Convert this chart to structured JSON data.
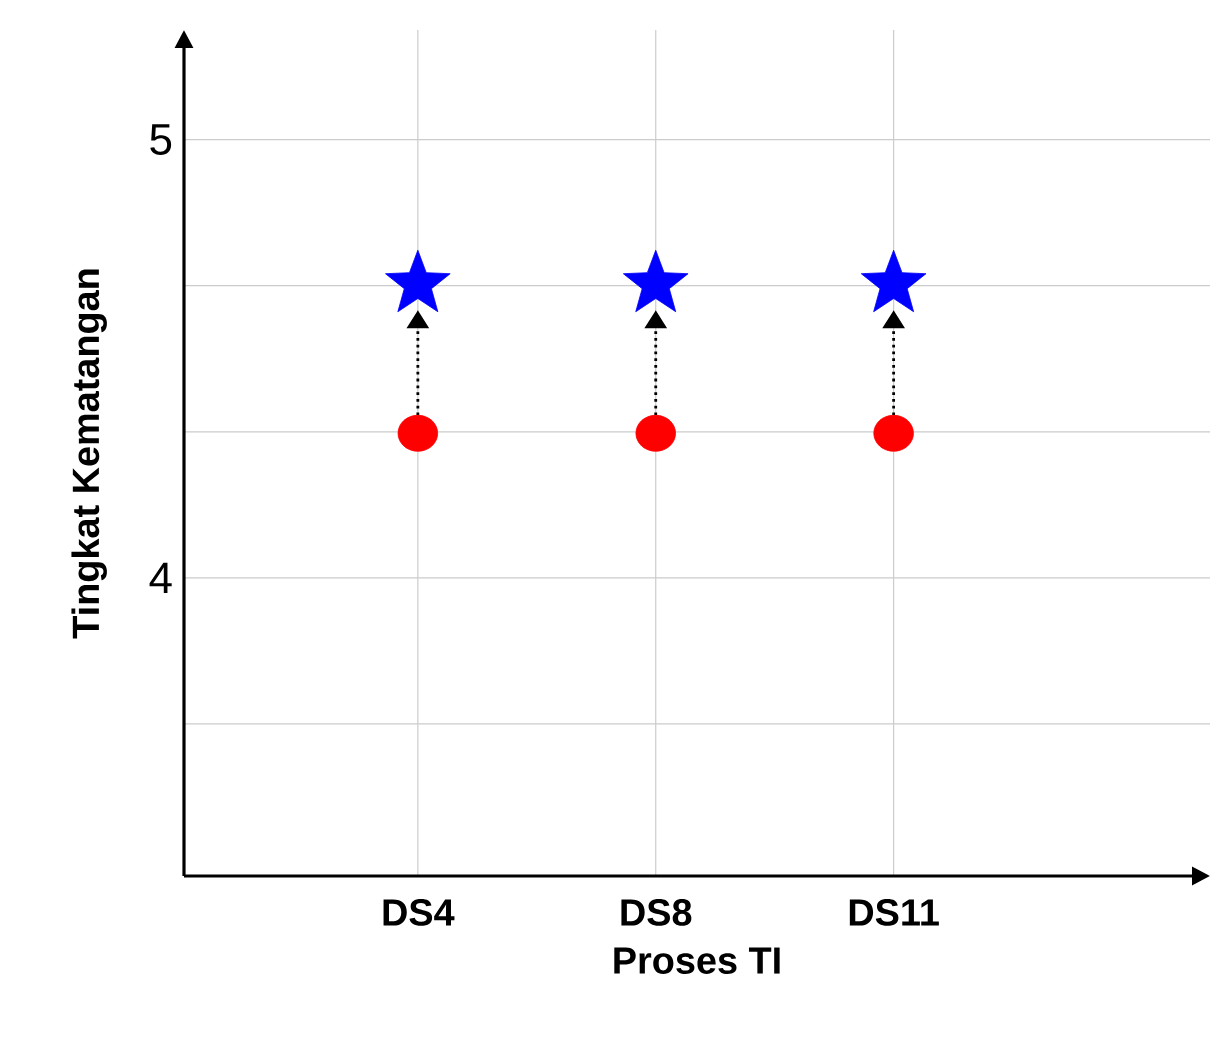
{
  "chart_data": {
    "type": "scatter",
    "xlabel": "Proses TI",
    "ylabel": "Tingkat Kematangan",
    "categories": [
      "DS4",
      "DS8",
      "DS11"
    ],
    "series": [
      {
        "color": "#ff0000",
        "marker": "circle",
        "values": [
          4.33,
          4.33,
          4.33
        ]
      },
      {
        "color": "#0000ff",
        "marker": "star",
        "values": [
          4.67,
          4.67,
          4.67
        ]
      }
    ],
    "ylim": [
      3.32,
      5.25
    ],
    "yticks": [
      {
        "value": 3.667,
        "label": null
      },
      4,
      {
        "value": 4.333,
        "label": null
      },
      {
        "value": 4.667,
        "label": null
      },
      5
    ],
    "grid": true
  }
}
